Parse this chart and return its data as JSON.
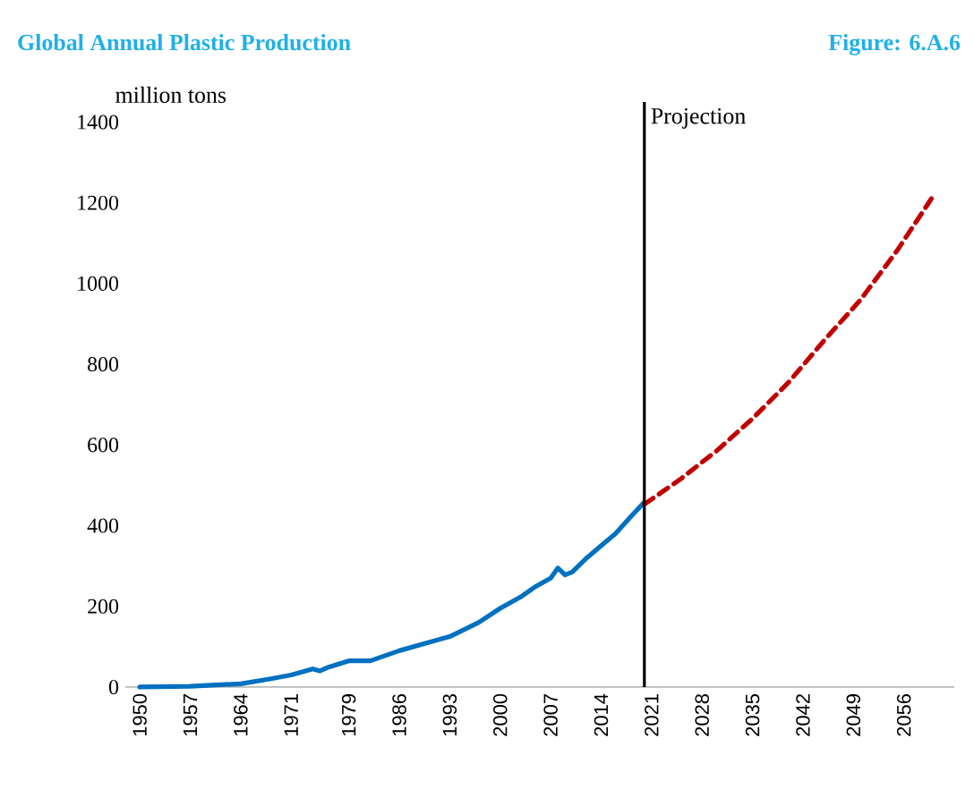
{
  "chart_data": {
    "type": "line",
    "title": "Global Annual Plastic Production",
    "subtitle": "Figure: 6.A.6",
    "ylabel": "million tons",
    "series": [
      {
        "color": "#0070c0",
        "line_style": "solid",
        "x": [
          1950,
          1957,
          1964,
          1968,
          1971,
          1974,
          1975,
          1976,
          1979,
          1982,
          1986,
          1990,
          1993,
          1997,
          2000,
          2003,
          2005,
          2007,
          2008,
          2009,
          2010,
          2012,
          2014,
          2016,
          2018,
          2020
        ],
        "values": [
          0,
          2,
          8,
          20,
          30,
          45,
          40,
          48,
          65,
          65,
          90,
          110,
          125,
          160,
          195,
          225,
          250,
          270,
          295,
          278,
          285,
          320,
          350,
          380,
          420,
          458
        ]
      },
      {
        "color": "#c00000",
        "line_style": "dashed",
        "x": [
          2020,
          2025,
          2030,
          2035,
          2040,
          2045,
          2050,
          2055,
          2060
        ],
        "values": [
          453,
          515,
          585,
          665,
          755,
          860,
          960,
          1080,
          1215
        ]
      }
    ],
    "xlim": [
      1948,
      2063
    ],
    "ylim": [
      0,
      1450
    ],
    "xticks": [
      1950,
      1957,
      1964,
      1971,
      1979,
      1986,
      1993,
      2000,
      2007,
      2014,
      2021,
      2028,
      2035,
      2042,
      2049,
      2056
    ],
    "yticks": [
      0,
      200,
      400,
      600,
      800,
      1000,
      1200,
      1400
    ],
    "ref_lines": [
      {
        "axis": "x",
        "value": 2020,
        "label": "Projection",
        "color": "#000000"
      }
    ],
    "grid": false,
    "marker": "none"
  }
}
